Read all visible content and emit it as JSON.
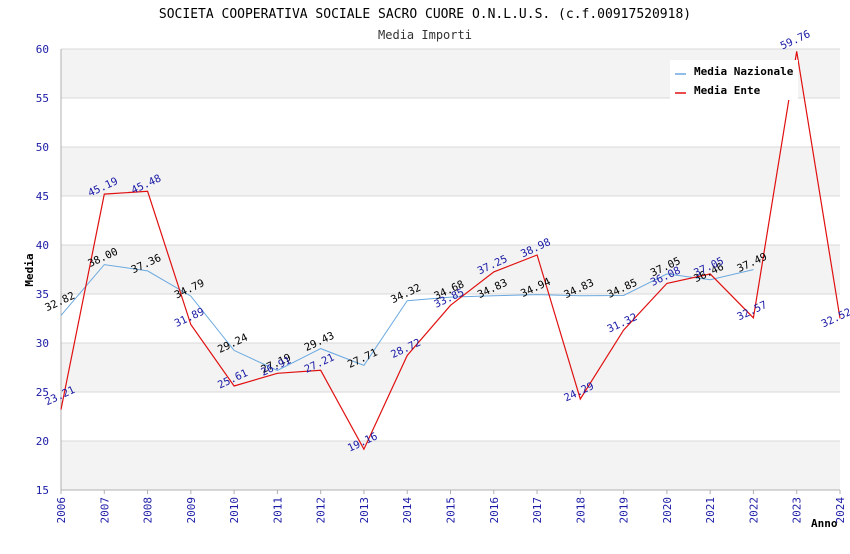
{
  "chart_data": {
    "type": "line",
    "title": "SOCIETA COOPERATIVA SOCIALE SACRO CUORE O.N.L.U.S. (c.f.00917520918)",
    "subtitle": "Media Importi",
    "xlabel": "Anno",
    "ylabel": "Media",
    "ylim": [
      15,
      60
    ],
    "yticks": [
      "15",
      "20",
      "25",
      "30",
      "35",
      "40",
      "45",
      "50",
      "55",
      "60"
    ],
    "x": [
      "2006",
      "2007",
      "2008",
      "2009",
      "2010",
      "2011",
      "2012",
      "2013",
      "2014",
      "2015",
      "2016",
      "2017",
      "2018",
      "2019",
      "2020",
      "2021",
      "2022",
      "2023",
      "2024"
    ],
    "legend_position": "top-right",
    "grid": true,
    "series": [
      {
        "name": "Media Nazionale",
        "color": "#6aa9e0",
        "values": [
          32.82,
          38.0,
          37.36,
          34.79,
          29.24,
          27.19,
          29.43,
          27.71,
          34.32,
          34.68,
          34.83,
          34.94,
          34.83,
          34.85,
          37.05,
          36.46,
          37.49,
          null,
          null
        ],
        "labels": [
          "32.82",
          "38.00",
          "37.36",
          "34.79",
          "29.24",
          "27.19",
          "29.43",
          "27.71",
          "34.32",
          "34.68",
          "34.83",
          "34.94",
          "34.83",
          "34.85",
          "37.05",
          "36.46",
          "37.49",
          "",
          ""
        ]
      },
      {
        "name": "Media Ente",
        "color": "#e01010",
        "values": [
          23.21,
          45.19,
          45.48,
          31.89,
          25.61,
          26.91,
          27.21,
          19.16,
          28.72,
          33.85,
          37.25,
          38.98,
          24.29,
          31.32,
          36.08,
          37.05,
          32.57,
          59.76,
          32.52
        ],
        "labels": [
          "23.21",
          "45.19",
          "45.48",
          "31.89",
          "25.61",
          "26.91",
          "27.21",
          "19.16",
          "28.72",
          "33.85",
          "37.25",
          "38.98",
          "24.29",
          "31.32",
          "36.08",
          "37.05",
          "32.57",
          "59.76",
          "32.52"
        ]
      }
    ]
  }
}
